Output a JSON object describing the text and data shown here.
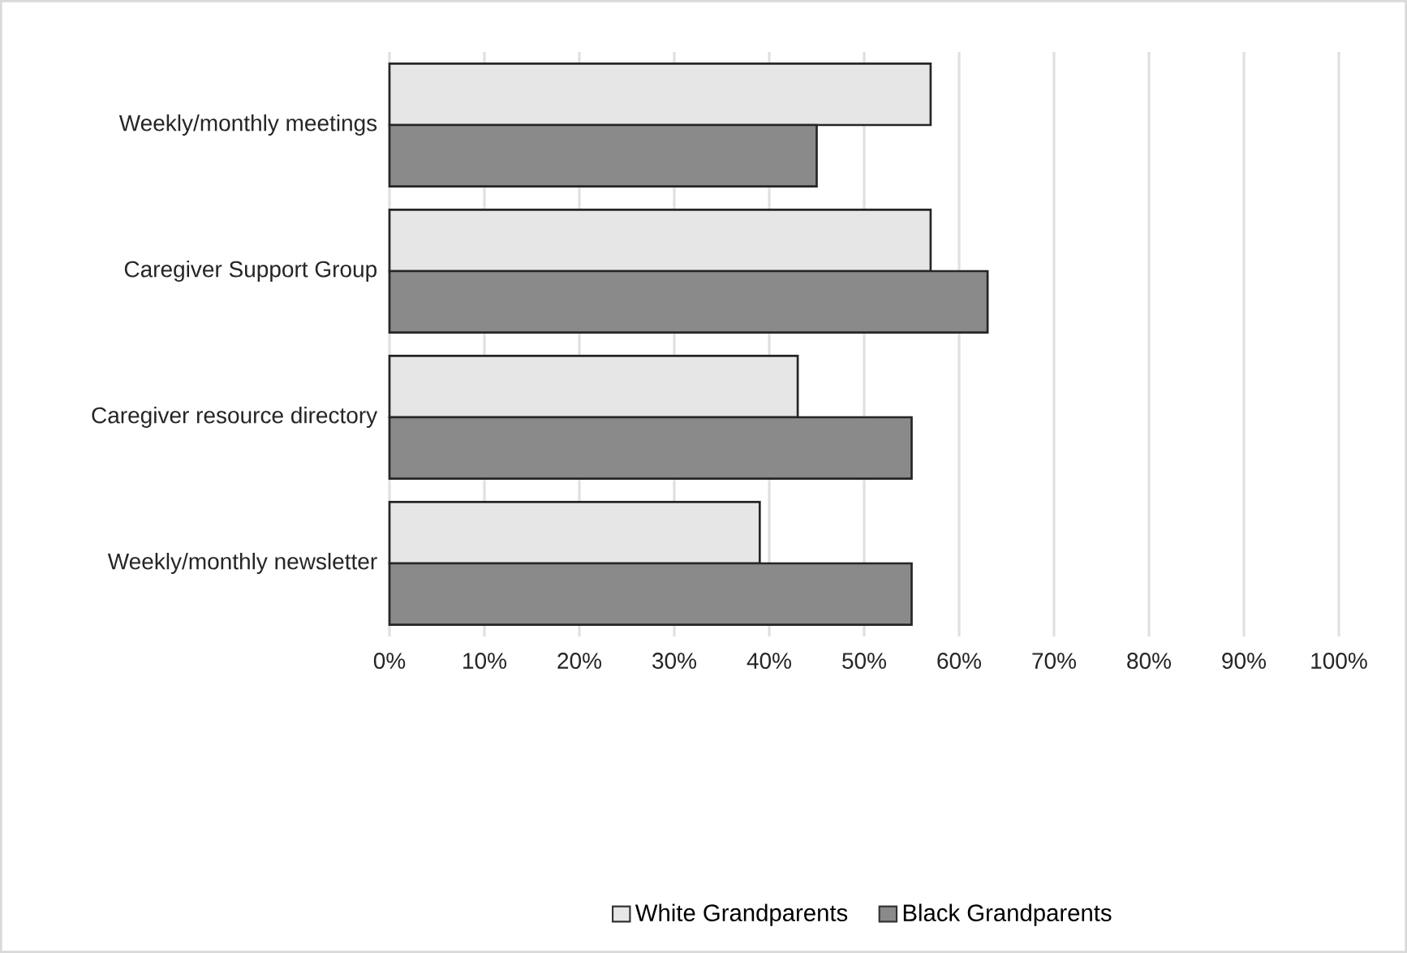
{
  "chart_data": {
    "type": "bar",
    "orientation": "horizontal",
    "categories": [
      "Weekly/monthly meetings",
      "Caregiver Support Group",
      "Caregiver resource directory",
      "Weekly/monthly newsletter"
    ],
    "series": [
      {
        "name": "White Grandparents",
        "color": "#e6e6e6",
        "values": [
          57,
          57,
          43,
          39
        ]
      },
      {
        "name": "Black Grandparents",
        "color": "#8a8a8a",
        "values": [
          45,
          63,
          55,
          55
        ]
      }
    ],
    "xlim": [
      0,
      100
    ],
    "xticks": [
      {
        "value": 0,
        "label": "0%"
      },
      {
        "value": 10,
        "label": "10%"
      },
      {
        "value": 20,
        "label": "20%"
      },
      {
        "value": 30,
        "label": "30%"
      },
      {
        "value": 40,
        "label": "40%"
      },
      {
        "value": 50,
        "label": "50%"
      },
      {
        "value": 60,
        "label": "60%"
      },
      {
        "value": 70,
        "label": "70%"
      },
      {
        "value": 80,
        "label": "80%"
      },
      {
        "value": 90,
        "label": "90%"
      },
      {
        "value": 100,
        "label": "100%"
      }
    ],
    "grid": "x",
    "legend": "bottom"
  }
}
